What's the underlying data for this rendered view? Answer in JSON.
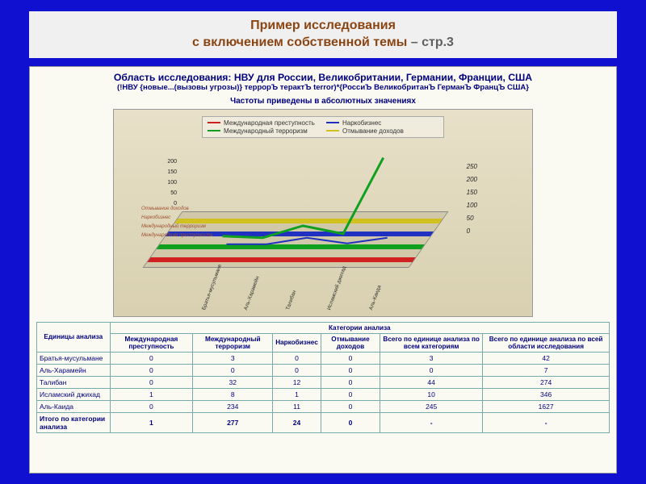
{
  "slide": {
    "title_line1": "Пример исследования",
    "title_line2": "с включением собственной темы",
    "title_page": " – стр.3"
  },
  "panel": {
    "research_title": "Область исследования: НВУ для России, Великобритании, Германии, Франции, США",
    "research_query": "(!НВУ {новые...(вызовы угрозы)} террорЪ терактЪ terror)*{РоссиЪ ВеликобританЪ ГерманЪ ФранцЪ США}",
    "freq_note": "Частоты приведены в абсолютных значениях"
  },
  "chart": {
    "type": "3d-line",
    "background_gradient": [
      "#e8e0c8",
      "#d8d0b0"
    ],
    "floor_color": "#d0c8a8",
    "grid_color": "#a0a080",
    "legend": [
      {
        "label": "Международная преступность",
        "color": "#d02020"
      },
      {
        "label": "Наркобизнес",
        "color": "#2030c0"
      },
      {
        "label": "Международный терроризм",
        "color": "#10a020"
      },
      {
        "label": "Отмывание доходов",
        "color": "#d0c020"
      }
    ],
    "y_left": {
      "ticks": [
        0,
        50,
        100,
        150,
        200
      ],
      "fontsize": 7
    },
    "y_right": {
      "ticks": [
        0,
        50,
        100,
        150,
        200,
        250
      ],
      "fontsize": 8,
      "italic": true
    },
    "z_categories_ru": [
      "Отмывание доходов",
      "Наркобизнес",
      "Международный терроризм",
      "Международная преступность"
    ],
    "x_categories": [
      "Братья-мусульмане",
      "Аль-Харамейн",
      "Талибан",
      "Исламский джихад",
      "Аль-Каида"
    ],
    "series": {
      "terrorism_green": {
        "color": "#10a020",
        "width": 3,
        "values": [
          3,
          0,
          32,
          8,
          234
        ]
      },
      "narco_blue": {
        "color": "#2030c0",
        "width": 2,
        "values": [
          0,
          0,
          12,
          1,
          11
        ]
      },
      "crime_red": {
        "color": "#d02020",
        "width": 2,
        "values": [
          0,
          0,
          0,
          1,
          0
        ]
      },
      "launder_yellow": {
        "color": "#d0c020",
        "width": 2,
        "values": [
          0,
          0,
          0,
          0,
          0
        ]
      }
    },
    "z_stripe_colors": [
      "#d0c020",
      "#2030c0",
      "#10a020",
      "#d02020"
    ]
  },
  "table": {
    "super_header": "Категории анализа",
    "row_header": "Единицы анализа",
    "columns": [
      "Международная преступность",
      "Международный терроризм",
      "Наркобизнес",
      "Отмывание доходов",
      "Всего по единице анализа по всем категориям",
      "Всего по единице анализа по всей области исследования"
    ],
    "rows": [
      {
        "label": "Братья-мусульмане",
        "cells": [
          "0",
          "3",
          "0",
          "0",
          "3",
          "42"
        ]
      },
      {
        "label": "Аль-Харамейн",
        "cells": [
          "0",
          "0",
          "0",
          "0",
          "0",
          "7"
        ]
      },
      {
        "label": "Талибан",
        "cells": [
          "0",
          "32",
          "12",
          "0",
          "44",
          "274"
        ]
      },
      {
        "label": "Исламский джихад",
        "cells": [
          "1",
          "8",
          "1",
          "0",
          "10",
          "346"
        ]
      },
      {
        "label": "Аль-Каида",
        "cells": [
          "0",
          "234",
          "11",
          "0",
          "245",
          "1627"
        ]
      }
    ],
    "total_row": {
      "label": "Итого по категории анализа",
      "cells": [
        "1",
        "277",
        "24",
        "0",
        "-",
        "-"
      ]
    },
    "border_color": "#77aaaa",
    "text_color": "#000080"
  }
}
